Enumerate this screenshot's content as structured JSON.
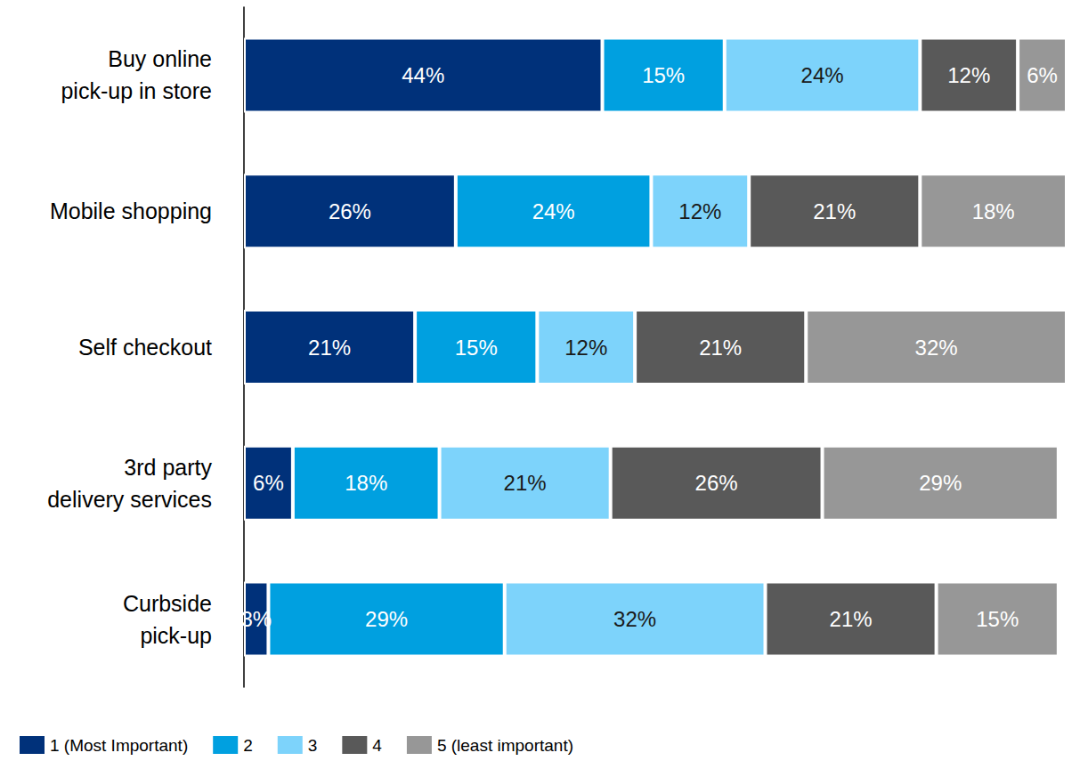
{
  "chart_data": {
    "type": "bar",
    "orientation": "horizontal",
    "stacked": true,
    "data_labels": true,
    "tick_labels": "y",
    "grid": false,
    "legend": "bottom left",
    "categories": [
      "Buy online\npick-up in store",
      "Mobile shopping",
      "Self checkout",
      "3rd party\ndelivery services",
      "Curbside\npick-up"
    ],
    "xlim": [
      0,
      101
    ],
    "series": [
      {
        "name": "1 (Most Important)",
        "color": "#00317a",
        "values": [
          44,
          26,
          21,
          6,
          3
        ],
        "value_labels": [
          "44%",
          "26%",
          "21%",
          "6%",
          "3%"
        ]
      },
      {
        "name": "2",
        "color": "#00a0e0",
        "values": [
          15,
          24,
          15,
          18,
          29
        ],
        "value_labels": [
          "15%",
          "24%",
          "15%",
          "18%",
          "29%"
        ]
      },
      {
        "name": "3",
        "color": "#7dd3fb",
        "values": [
          24,
          12,
          12,
          21,
          32
        ],
        "value_labels": [
          "24%",
          "12%",
          "12%",
          "21%",
          "32%"
        ]
      },
      {
        "name": "4",
        "color": "#595959",
        "values": [
          12,
          21,
          21,
          26,
          21
        ],
        "value_labels": [
          "12%",
          "21%",
          "21%",
          "26%",
          "21%"
        ]
      },
      {
        "name": "5 (least important)",
        "color": "#979797",
        "values": [
          6,
          18,
          32,
          29,
          15
        ],
        "value_labels": [
          "6%",
          "18%",
          "32%",
          "29%",
          "15%"
        ]
      }
    ]
  }
}
